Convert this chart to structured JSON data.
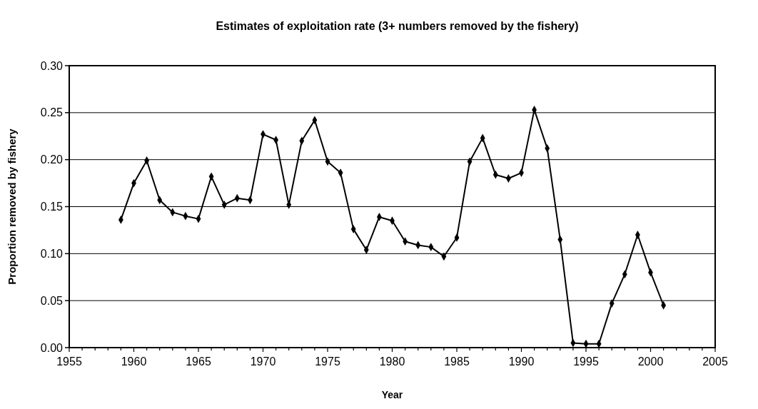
{
  "chart_data": {
    "type": "line",
    "title": "Estimates of exploitation rate (3+ numbers removed by the fishery)",
    "xlabel": "Year",
    "ylabel": "Proportion removed by fishery",
    "x": [
      1959,
      1960,
      1961,
      1962,
      1963,
      1964,
      1965,
      1966,
      1967,
      1968,
      1969,
      1970,
      1971,
      1972,
      1973,
      1974,
      1975,
      1976,
      1977,
      1978,
      1979,
      1980,
      1981,
      1982,
      1983,
      1984,
      1985,
      1986,
      1987,
      1988,
      1989,
      1990,
      1991,
      1992,
      1993,
      1994,
      1995,
      1996,
      1997,
      1998,
      1999,
      2000,
      2001
    ],
    "series": [
      {
        "color": "#000000",
        "values": [
          0.136,
          0.175,
          0.199,
          0.157,
          0.144,
          0.14,
          0.137,
          0.182,
          0.152,
          0.159,
          0.157,
          0.227,
          0.221,
          0.152,
          0.22,
          0.242,
          0.198,
          0.186,
          0.126,
          0.104,
          0.139,
          0.135,
          0.113,
          0.109,
          0.107,
          0.097,
          0.117,
          0.198,
          0.223,
          0.184,
          0.18,
          0.186,
          0.253,
          0.212,
          0.115,
          0.005,
          0.004,
          0.004,
          0.047,
          0.078,
          0.12,
          0.08,
          0.045
        ]
      }
    ],
    "xlim": [
      1955,
      2005
    ],
    "xticks": [
      1955,
      {
        "value": 1956,
        "label": null
      },
      {
        "value": 1957,
        "label": null
      },
      {
        "value": 1958,
        "label": null
      },
      {
        "value": 1959,
        "label": null
      },
      1960,
      {
        "value": 1961,
        "label": null
      },
      {
        "value": 1962,
        "label": null
      },
      {
        "value": 1963,
        "label": null
      },
      {
        "value": 1964,
        "label": null
      },
      1965,
      {
        "value": 1966,
        "label": null
      },
      {
        "value": 1967,
        "label": null
      },
      {
        "value": 1968,
        "label": null
      },
      {
        "value": 1969,
        "label": null
      },
      1970,
      {
        "value": 1971,
        "label": null
      },
      {
        "value": 1972,
        "label": null
      },
      {
        "value": 1973,
        "label": null
      },
      {
        "value": 1974,
        "label": null
      },
      1975,
      {
        "value": 1976,
        "label": null
      },
      {
        "value": 1977,
        "label": null
      },
      {
        "value": 1978,
        "label": null
      },
      {
        "value": 1979,
        "label": null
      },
      1980,
      {
        "value": 1981,
        "label": null
      },
      {
        "value": 1982,
        "label": null
      },
      {
        "value": 1983,
        "label": null
      },
      {
        "value": 1984,
        "label": null
      },
      1985,
      {
        "value": 1986,
        "label": null
      },
      {
        "value": 1987,
        "label": null
      },
      {
        "value": 1988,
        "label": null
      },
      {
        "value": 1989,
        "label": null
      },
      1990,
      {
        "value": 1991,
        "label": null
      },
      {
        "value": 1992,
        "label": null
      },
      {
        "value": 1993,
        "label": null
      },
      {
        "value": 1994,
        "label": null
      },
      1995,
      {
        "value": 1996,
        "label": null
      },
      {
        "value": 1997,
        "label": null
      },
      {
        "value": 1998,
        "label": null
      },
      {
        "value": 1999,
        "label": null
      },
      2000,
      {
        "value": 2001,
        "label": null
      },
      {
        "value": 2002,
        "label": null
      },
      {
        "value": 2003,
        "label": null
      },
      {
        "value": 2004,
        "label": null
      },
      2005
    ],
    "ylim": [
      0,
      0.3
    ],
    "yticks": [
      {
        "value": 0,
        "label": "0.00"
      },
      {
        "value": 0.05,
        "label": "0.05"
      },
      {
        "value": 0.1,
        "label": "0.10"
      },
      {
        "value": 0.15,
        "label": "0.15"
      },
      {
        "value": 0.2,
        "label": "0.20"
      },
      {
        "value": 0.25,
        "label": "0.25"
      },
      {
        "value": 0.3,
        "label": "0.30"
      }
    ],
    "grid": "y",
    "marker": "diamond",
    "line_style": "solid"
  }
}
